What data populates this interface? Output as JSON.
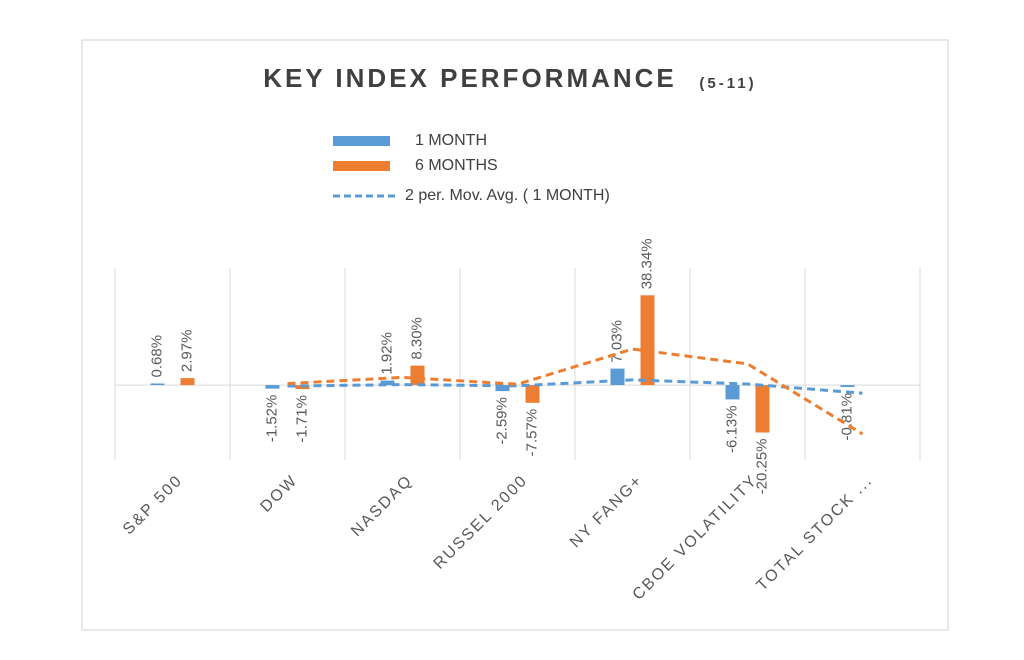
{
  "chart_data": {
    "type": "bar",
    "title": "KEY INDEX PERFORMANCE",
    "subtitle": "(5-11)",
    "categories": [
      "S&P 500",
      "DOW",
      "NASDAQ",
      "RUSSEL 2000",
      "NY FANG+",
      "CBOE VOLATILITY",
      "TOTAL STOCK ..."
    ],
    "series": [
      {
        "name": "1 MONTH",
        "color": "#5b9bd5",
        "values": [
          0.68,
          -1.52,
          1.92,
          -2.59,
          7.03,
          -6.13,
          -0.81
        ],
        "value_labels": [
          "0.68%",
          "-1.52%",
          "1.92%",
          "-2.59%",
          "7.03%",
          "-6.13%",
          "-0.81%"
        ]
      },
      {
        "name": "6 MONTHS",
        "color": "#ed7d31",
        "values": [
          2.97,
          -1.71,
          8.3,
          -7.57,
          38.34,
          -20.25,
          null
        ],
        "value_labels": [
          "2.97%",
          "-1.71%",
          "8.30%",
          "-7.57%",
          "38.34%",
          "-20.25%",
          null
        ]
      }
    ],
    "trendlines": [
      {
        "name": "2 per. Mov. Avg. ( 1 MONTH)",
        "color": "#5b9bd5",
        "values": [
          null,
          -0.42,
          0.2,
          -0.335,
          2.22,
          0.45,
          -3.47
        ]
      },
      {
        "color": "#ed7d31",
        "values": [
          null,
          0.63,
          3.295,
          0.365,
          15.385,
          9.045,
          -20.9
        ]
      }
    ],
    "ylim": [
      -32,
      50
    ],
    "grid": true
  }
}
